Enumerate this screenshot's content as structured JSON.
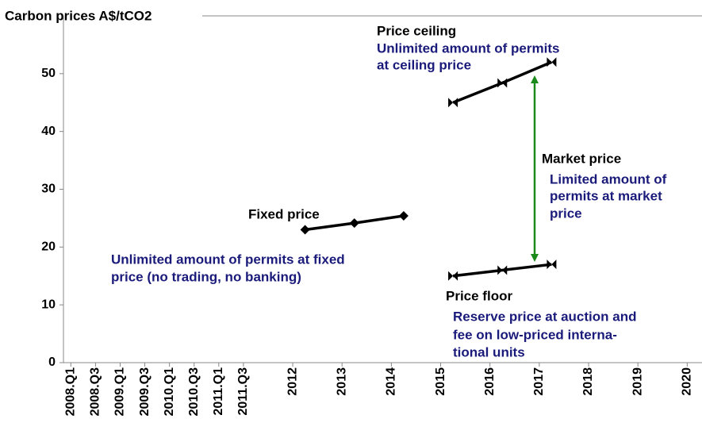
{
  "chart_data": {
    "type": "line",
    "title": "Carbon prices A$/tCO2",
    "xlim": [
      2007.85,
      2020.8
    ],
    "xticks": [
      {
        "value": 2008,
        "label": "2008.Q1"
      },
      {
        "value": 2008.5,
        "label": "2008.Q3"
      },
      {
        "value": 2009,
        "label": "2009.Q1"
      },
      {
        "value": 2009.5,
        "label": "2009.Q3"
      },
      {
        "value": 2010,
        "label": "2010.Q1"
      },
      {
        "value": 2010.5,
        "label": "2010.Q3"
      },
      {
        "value": 2011,
        "label": "2011.Q1"
      },
      {
        "value": 2011.5,
        "label": "2011.Q3"
      },
      {
        "value": 2012.5,
        "label": "2012"
      },
      {
        "value": 2013.5,
        "label": "2013"
      },
      {
        "value": 2014.5,
        "label": "2014"
      },
      {
        "value": 2015.5,
        "label": "2015"
      },
      {
        "value": 2016.5,
        "label": "2016"
      },
      {
        "value": 2017.5,
        "label": "2017"
      },
      {
        "value": 2018.5,
        "label": "2018"
      },
      {
        "value": 2019.5,
        "label": "2019"
      },
      {
        "value": 2020.5,
        "label": "2020"
      }
    ],
    "ylim": [
      0,
      60
    ],
    "yticks": [
      0,
      10,
      20,
      30,
      40,
      50
    ],
    "series": [
      {
        "name": "Fixed price",
        "color": "#000000",
        "marker": "diamond",
        "x": [
          2012.75,
          2013.75,
          2014.75
        ],
        "values": [
          23,
          24.15,
          25.4
        ]
      },
      {
        "name": "Price ceiling",
        "color": "#000000",
        "marker": "bowtie",
        "x": [
          2015.75,
          2016.75,
          2017.75
        ],
        "values": [
          45,
          48.4,
          52
        ]
      },
      {
        "name": "Price floor",
        "color": "#000000",
        "marker": "bowtie",
        "x": [
          2015.75,
          2016.75,
          2017.75
        ],
        "values": [
          15,
          16,
          17
        ]
      }
    ],
    "annotations": [
      {
        "text": "Price ceiling",
        "color": "#000000"
      },
      {
        "text": "Unlimited amount of permits",
        "color": "#1a1a7a"
      },
      {
        "text": "at ceiling price",
        "color": "#1a1a7a"
      },
      {
        "text": "Fixed price",
        "color": "#000000"
      },
      {
        "text": "Unlimited amount of permits at fixed",
        "color": "#1a1a7a"
      },
      {
        "text": "price (no trading, no banking)",
        "color": "#1a1a7a"
      },
      {
        "text": "Market price",
        "color": "#000000"
      },
      {
        "text": "Limited amount of",
        "color": "#1a1a7a"
      },
      {
        "text": "permits at market",
        "color": "#1a1a7a"
      },
      {
        "text": "price",
        "color": "#1a1a7a"
      },
      {
        "text": "Price floor",
        "color": "#000000"
      },
      {
        "text": "Reserve price at auction and",
        "color": "#1a1a7a"
      },
      {
        "text": "fee on low-priced interna-",
        "color": "#1a1a7a"
      },
      {
        "text": "tional units",
        "color": "#1a1a7a"
      }
    ],
    "arrow_color": "#1a8a1a"
  }
}
